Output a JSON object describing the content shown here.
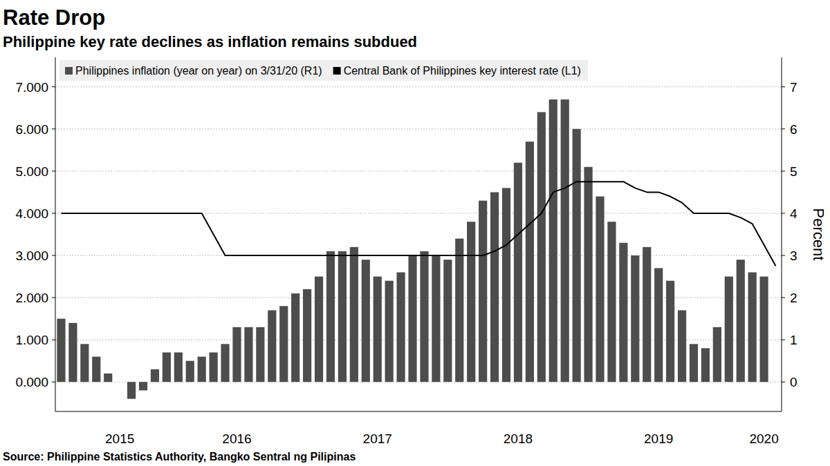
{
  "chart_data": {
    "type": "bar",
    "title": "Rate Drop",
    "subtitle": "Philippine key rate declines as inflation remains subdued",
    "source": "Source: Philippine Statistics Authority, Bangko Sentral ng Pilipinas",
    "y2label": "Percent",
    "categories": [
      null,
      null,
      null,
      null,
      null,
      "2015",
      null,
      null,
      null,
      null,
      null,
      null,
      null,
      null,
      null,
      "2016",
      null,
      null,
      null,
      null,
      null,
      null,
      null,
      null,
      null,
      null,
      null,
      "2017",
      null,
      null,
      null,
      null,
      null,
      null,
      null,
      null,
      null,
      null,
      null,
      "2018",
      null,
      null,
      null,
      null,
      null,
      null,
      null,
      null,
      null,
      null,
      null,
      "2019",
      null,
      null,
      null,
      null,
      null,
      null,
      null,
      null,
      "2020",
      null
    ],
    "series": [
      {
        "name": "Philippines inflation (year on year) on 3/31/20 (R1)",
        "type": "bar",
        "axis": "y2",
        "color": "#4d4d4d",
        "values": [
          1.5,
          1.4,
          0.9,
          0.6,
          0.2,
          0.0,
          -0.4,
          -0.2,
          0.3,
          0.7,
          0.7,
          0.5,
          0.6,
          0.7,
          0.9,
          1.3,
          1.3,
          1.3,
          1.7,
          1.8,
          2.1,
          2.2,
          2.5,
          3.1,
          3.1,
          3.2,
          2.9,
          2.5,
          2.4,
          2.6,
          3.0,
          3.1,
          3.0,
          2.9,
          3.4,
          3.8,
          4.3,
          4.5,
          4.6,
          5.2,
          5.7,
          6.4,
          6.7,
          6.7,
          6.0,
          5.1,
          4.4,
          3.8,
          3.3,
          3.0,
          3.2,
          2.7,
          2.4,
          1.7,
          0.9,
          0.8,
          1.3,
          2.5,
          2.9,
          2.6,
          2.5,
          null
        ]
      },
      {
        "name": "Central Bank of Philippines key interest rate (L1)",
        "type": "line",
        "color": "#000000",
        "values": [
          4,
          4,
          4,
          4,
          4,
          4,
          4,
          4,
          4,
          4,
          4,
          4,
          4,
          3.5,
          3,
          3,
          3,
          3,
          3,
          3,
          3,
          3,
          3,
          3,
          3,
          3,
          3,
          3,
          3,
          3,
          3,
          3,
          3,
          3,
          3,
          3,
          3,
          3.1,
          3.25,
          3.5,
          3.75,
          4,
          4.5,
          4.6,
          4.75,
          4.75,
          4.75,
          4.75,
          4.75,
          4.6,
          4.5,
          4.5,
          4.4,
          4.25,
          4,
          4,
          4,
          4,
          3.9,
          3.75,
          3.25,
          2.75
        ]
      }
    ],
    "ylim": [
      -0.7,
      7.7
    ],
    "yticks": [
      {
        "value": 0,
        "label": "0.000"
      },
      {
        "value": 1,
        "label": "1.000"
      },
      {
        "value": 2,
        "label": "2.000"
      },
      {
        "value": 3,
        "label": "3.000"
      },
      {
        "value": 4,
        "label": "4.000"
      },
      {
        "value": 5,
        "label": "5.000"
      },
      {
        "value": 6,
        "label": "6.000"
      },
      {
        "value": 7,
        "label": "7.000"
      }
    ],
    "y2lim": [
      -0.7,
      7.7
    ],
    "y2ticks": [
      0,
      1,
      2,
      3,
      4,
      5,
      6,
      7
    ],
    "grid": true,
    "legend": "top-left"
  }
}
